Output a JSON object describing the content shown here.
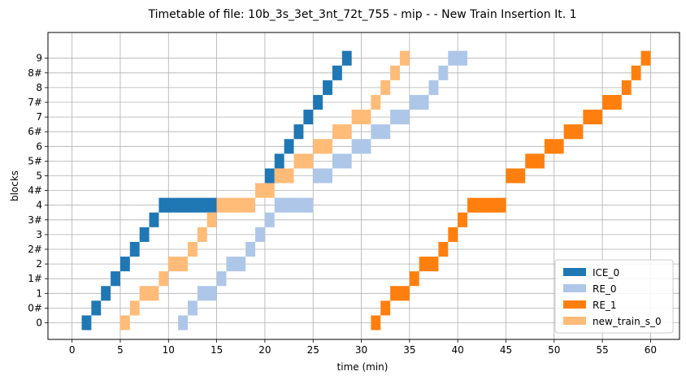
{
  "chart_data": {
    "type": "bar",
    "title": "Timetable of file: 10b_3s_3et_3nt_72t_755 - mip -  - New Train Insertion It. 1",
    "xlabel": "time (min)",
    "ylabel": "blocks",
    "xlim": [
      -2.5,
      63
    ],
    "xticks": [
      0,
      5,
      10,
      15,
      20,
      25,
      30,
      35,
      40,
      45,
      50,
      55,
      60
    ],
    "categories": [
      "0",
      "0#",
      "1",
      "1#",
      "2",
      "2#",
      "3",
      "3#",
      "4",
      "4#",
      "5",
      "5#",
      "6",
      "6#",
      "7",
      "7#",
      "8",
      "8#",
      "9"
    ],
    "grid": true,
    "legend_position": "lower-right",
    "series": [
      {
        "name": "ICE_0",
        "color": "#1f77b4",
        "intervals": [
          {
            "block": "0",
            "start": 1,
            "end": 2
          },
          {
            "block": "0#",
            "start": 2,
            "end": 3
          },
          {
            "block": "1",
            "start": 3,
            "end": 4
          },
          {
            "block": "1#",
            "start": 4,
            "end": 5
          },
          {
            "block": "2",
            "start": 5,
            "end": 6
          },
          {
            "block": "2#",
            "start": 6,
            "end": 7
          },
          {
            "block": "3",
            "start": 7,
            "end": 8
          },
          {
            "block": "3#",
            "start": 8,
            "end": 9
          },
          {
            "block": "4",
            "start": 9,
            "end": 15
          },
          {
            "block": "5",
            "start": 20,
            "end": 21
          },
          {
            "block": "5#",
            "start": 21,
            "end": 22
          },
          {
            "block": "6",
            "start": 22,
            "end": 23
          },
          {
            "block": "6#",
            "start": 23,
            "end": 24
          },
          {
            "block": "7",
            "start": 24,
            "end": 25
          },
          {
            "block": "7#",
            "start": 25,
            "end": 26
          },
          {
            "block": "8",
            "start": 26,
            "end": 27
          },
          {
            "block": "8#",
            "start": 27,
            "end": 28
          },
          {
            "block": "9",
            "start": 28,
            "end": 29
          }
        ]
      },
      {
        "name": "RE_0",
        "color": "#aec7e8",
        "intervals": [
          {
            "block": "0",
            "start": 11,
            "end": 12
          },
          {
            "block": "0#",
            "start": 12,
            "end": 13
          },
          {
            "block": "1",
            "start": 13,
            "end": 15
          },
          {
            "block": "1#",
            "start": 15,
            "end": 16
          },
          {
            "block": "2",
            "start": 16,
            "end": 18
          },
          {
            "block": "2#",
            "start": 18,
            "end": 19
          },
          {
            "block": "3",
            "start": 19,
            "end": 20
          },
          {
            "block": "3#",
            "start": 20,
            "end": 21
          },
          {
            "block": "4",
            "start": 21,
            "end": 25
          },
          {
            "block": "5",
            "start": 25,
            "end": 27
          },
          {
            "block": "5#",
            "start": 27,
            "end": 29
          },
          {
            "block": "6",
            "start": 29,
            "end": 31
          },
          {
            "block": "6#",
            "start": 31,
            "end": 33
          },
          {
            "block": "7",
            "start": 33,
            "end": 35
          },
          {
            "block": "7#",
            "start": 35,
            "end": 37
          },
          {
            "block": "8",
            "start": 37,
            "end": 38
          },
          {
            "block": "8#",
            "start": 38,
            "end": 39
          },
          {
            "block": "9",
            "start": 39,
            "end": 40
          },
          {
            "block": "9",
            "start": 40,
            "end": 41
          }
        ]
      },
      {
        "name": "RE_1",
        "color": "#ff7f0e",
        "intervals": [
          {
            "block": "0",
            "start": 31,
            "end": 32
          },
          {
            "block": "0#",
            "start": 32,
            "end": 33
          },
          {
            "block": "1",
            "start": 33,
            "end": 35
          },
          {
            "block": "1#",
            "start": 35,
            "end": 36
          },
          {
            "block": "2",
            "start": 36,
            "end": 38
          },
          {
            "block": "2#",
            "start": 38,
            "end": 39
          },
          {
            "block": "3",
            "start": 39,
            "end": 40
          },
          {
            "block": "3#",
            "start": 40,
            "end": 41
          },
          {
            "block": "4",
            "start": 41,
            "end": 45
          },
          {
            "block": "5",
            "start": 45,
            "end": 47
          },
          {
            "block": "5#",
            "start": 47,
            "end": 49
          },
          {
            "block": "6",
            "start": 49,
            "end": 51
          },
          {
            "block": "6#",
            "start": 51,
            "end": 53
          },
          {
            "block": "7",
            "start": 53,
            "end": 55
          },
          {
            "block": "7#",
            "start": 55,
            "end": 57
          },
          {
            "block": "8",
            "start": 57,
            "end": 58
          },
          {
            "block": "8#",
            "start": 58,
            "end": 59
          },
          {
            "block": "9",
            "start": 59,
            "end": 60
          }
        ]
      },
      {
        "name": "new_train_s_0",
        "color": "#ffbb78",
        "intervals": [
          {
            "block": "0",
            "start": 5,
            "end": 6
          },
          {
            "block": "0#",
            "start": 6,
            "end": 7
          },
          {
            "block": "1",
            "start": 7,
            "end": 9
          },
          {
            "block": "1#",
            "start": 9,
            "end": 10
          },
          {
            "block": "2",
            "start": 10,
            "end": 12
          },
          {
            "block": "2#",
            "start": 12,
            "end": 13
          },
          {
            "block": "3",
            "start": 13,
            "end": 14
          },
          {
            "block": "3#",
            "start": 14,
            "end": 15
          },
          {
            "block": "4",
            "start": 15,
            "end": 19
          },
          {
            "block": "4#",
            "start": 19,
            "end": 21
          },
          {
            "block": "5",
            "start": 21,
            "end": 23
          },
          {
            "block": "5#",
            "start": 23,
            "end": 25
          },
          {
            "block": "6",
            "start": 25,
            "end": 27
          },
          {
            "block": "6#",
            "start": 27,
            "end": 29
          },
          {
            "block": "7",
            "start": 29,
            "end": 31
          },
          {
            "block": "7#",
            "start": 31,
            "end": 32
          },
          {
            "block": "8",
            "start": 32,
            "end": 33
          },
          {
            "block": "8#",
            "start": 33,
            "end": 34
          },
          {
            "block": "9",
            "start": 34,
            "end": 35
          }
        ]
      }
    ]
  }
}
